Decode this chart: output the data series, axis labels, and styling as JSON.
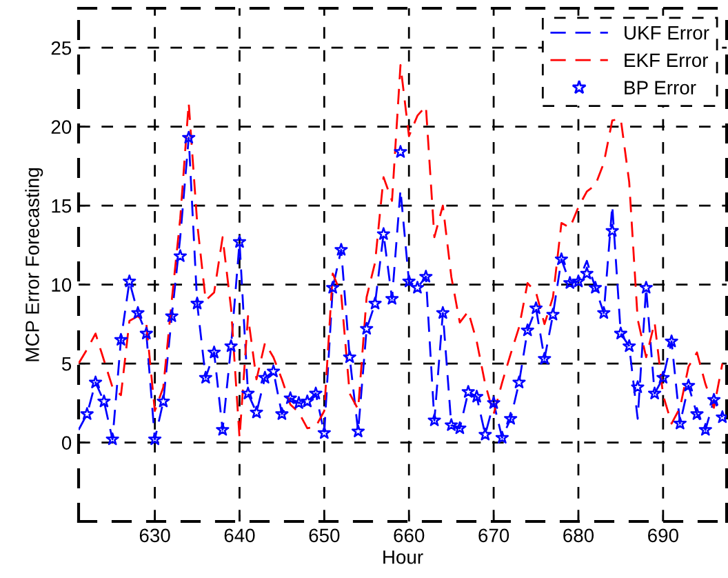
{
  "chart_data": {
    "type": "line",
    "xlabel": "Hour",
    "ylabel": "MCP Error Forecasting",
    "x": [
      621,
      622,
      623,
      624,
      625,
      626,
      627,
      628,
      629,
      630,
      631,
      632,
      633,
      634,
      635,
      636,
      637,
      638,
      639,
      640,
      641,
      642,
      643,
      644,
      645,
      646,
      647,
      648,
      649,
      650,
      651,
      652,
      653,
      654,
      655,
      656,
      657,
      658,
      659,
      660,
      661,
      662,
      663,
      664,
      665,
      666,
      667,
      668,
      669,
      670,
      671,
      672,
      673,
      674,
      675,
      676,
      677,
      678,
      679,
      680,
      681,
      682,
      683,
      684,
      685,
      686,
      687,
      688,
      689,
      690,
      691,
      692,
      693,
      694,
      695,
      696,
      697
    ],
    "series": [
      {
        "name": "UKF Error",
        "color": "#0000ff",
        "line_style": "dashed",
        "marker": "none",
        "values": [
          0.8,
          1.8,
          3.8,
          2.6,
          0.2,
          6.5,
          10.2,
          8.2,
          6.9,
          0.2,
          2.6,
          8.0,
          13.0,
          19.3,
          8.8,
          4.1,
          5.7,
          0.8,
          6.1,
          12.7,
          3.1,
          1.9,
          4.1,
          4.5,
          1.8,
          2.8,
          2.5,
          2.6,
          3.1,
          0.6,
          9.8,
          12.2,
          5.4,
          0.7,
          7.2,
          8.8,
          13.2,
          9.1,
          16.0,
          10.2,
          9.8,
          10.5,
          1.4,
          8.2,
          1.1,
          0.9,
          3.2,
          2.9,
          0.5,
          2.5,
          0.3,
          1.5,
          3.8,
          7.1,
          8.5,
          5.3,
          8.1,
          11.6,
          10.1,
          10.2,
          11.5,
          9.8,
          8.2,
          15.0,
          6.9,
          6.1,
          1.5,
          9.8,
          3.1,
          4.1,
          6.4,
          1.2,
          3.6,
          1.8,
          0.8,
          2.7,
          1.6
        ]
      },
      {
        "name": "EKF Error",
        "color": "#ff0000",
        "line_style": "dashed",
        "marker": "none",
        "values": [
          5.0,
          5.9,
          6.9,
          5.2,
          3.5,
          3.0,
          7.7,
          8.0,
          7.5,
          2.0,
          3.5,
          9.0,
          14.2,
          21.5,
          13.9,
          9.0,
          9.5,
          13.0,
          8.5,
          0.3,
          8.0,
          4.0,
          6.3,
          5.4,
          4.0,
          2.4,
          1.9,
          0.9,
          1.0,
          2.0,
          10.7,
          9.4,
          3.1,
          2.1,
          9.2,
          11.4,
          16.8,
          15.3,
          23.9,
          19.4,
          20.7,
          21.3,
          13.0,
          15.0,
          10.5,
          7.6,
          8.3,
          6.4,
          3.7,
          1.8,
          3.8,
          5.6,
          7.3,
          10.1,
          9.5,
          7.5,
          9.2,
          13.9,
          13.6,
          14.9,
          15.9,
          16.3,
          17.7,
          20.4,
          20.5,
          16.5,
          7.8,
          5.4,
          7.6,
          3.0,
          1.2,
          2.2,
          4.8,
          5.7,
          3.7,
          2.2,
          5.0
        ]
      },
      {
        "name": "BP Error",
        "type": "scatter",
        "color": "#0000ff",
        "marker": "star",
        "values": [
          null,
          1.8,
          3.8,
          2.6,
          0.2,
          6.5,
          10.2,
          8.2,
          6.9,
          0.2,
          2.6,
          8.0,
          11.8,
          19.3,
          8.8,
          4.1,
          5.7,
          0.8,
          6.1,
          12.7,
          3.1,
          1.9,
          4.1,
          4.5,
          1.8,
          2.8,
          2.5,
          2.6,
          3.1,
          0.6,
          9.8,
          12.2,
          5.4,
          0.7,
          7.2,
          8.8,
          13.2,
          9.1,
          18.4,
          10.2,
          9.8,
          10.5,
          1.4,
          8.2,
          1.1,
          0.9,
          3.2,
          2.9,
          0.5,
          2.5,
          0.3,
          1.5,
          3.8,
          7.1,
          8.5,
          5.3,
          8.1,
          11.6,
          10.1,
          10.2,
          10.7,
          9.8,
          8.2,
          13.4,
          6.9,
          6.1,
          3.5,
          9.8,
          3.1,
          4.1,
          6.4,
          1.2,
          3.6,
          1.8,
          0.8,
          2.7,
          1.6
        ]
      }
    ],
    "xlim": [
      621,
      697.5
    ],
    "ylim": [
      -5,
      27.5
    ],
    "xticks": [
      630,
      640,
      650,
      660,
      670,
      680,
      690
    ],
    "yticks": [
      0,
      5,
      10,
      15,
      20,
      25
    ],
    "grid": true,
    "legend": "top right"
  }
}
